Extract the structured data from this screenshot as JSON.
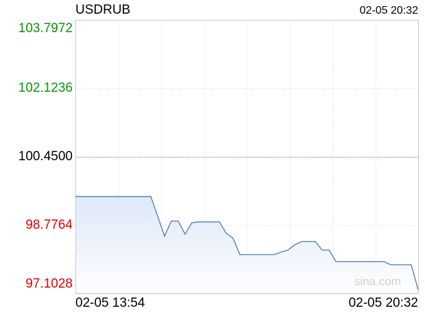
{
  "chart_data": {
    "type": "line",
    "title": "USDRUB",
    "timestamp": "02-05 20:32",
    "watermark": "sina.com",
    "categories": [
      "02-05 13:54",
      null,
      null,
      null,
      null,
      null,
      null,
      null,
      null,
      null,
      null,
      null,
      null,
      null,
      null,
      null,
      null,
      null,
      null,
      null,
      null,
      null,
      null,
      null,
      null,
      null,
      null,
      null,
      null,
      null,
      null,
      null,
      null,
      null,
      null,
      null,
      null,
      null,
      null,
      null,
      null,
      null,
      null,
      null,
      null,
      null,
      null,
      null,
      null,
      null,
      "02-05 20:32"
    ],
    "series": [
      {
        "name": "USDRUB",
        "color": "#3d6db5",
        "values": [
          99.48,
          99.48,
          99.48,
          99.48,
          99.48,
          99.48,
          99.48,
          99.48,
          99.48,
          99.48,
          99.48,
          99.48,
          99.0,
          98.51,
          98.88,
          98.88,
          98.56,
          98.84,
          98.86,
          98.86,
          98.86,
          98.86,
          98.58,
          98.46,
          98.06,
          98.06,
          98.06,
          98.06,
          98.06,
          98.06,
          98.12,
          98.17,
          98.3,
          98.38,
          98.38,
          98.38,
          98.17,
          98.17,
          97.89,
          97.89,
          97.89,
          97.89,
          97.89,
          97.89,
          97.89,
          97.89,
          97.81,
          97.81,
          97.81,
          97.81,
          97.2
        ]
      }
    ],
    "ylim": [
      97.1028,
      103.7972
    ],
    "yticks": [
      {
        "value": 97.1028,
        "label": "97.1028"
      },
      {
        "value": 98.7764,
        "label": "98.7764"
      },
      {
        "value": 100.45,
        "label": "100.4500"
      },
      {
        "value": 102.1236,
        "label": "102.1236"
      },
      {
        "value": 103.7972,
        "label": "103.7972"
      }
    ],
    "ytick_colors": [
      "#e00000",
      "#e00000",
      "#000000",
      "#009900",
      "#009900"
    ],
    "grid": true
  }
}
